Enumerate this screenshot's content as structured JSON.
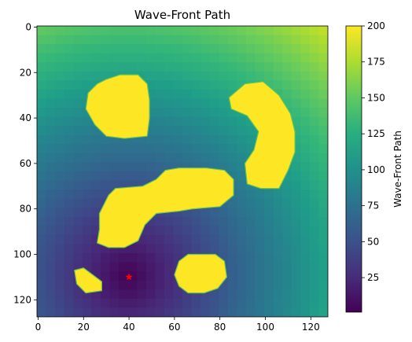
{
  "chart_data": {
    "type": "heatmap",
    "title": "Wave-Front Path",
    "xlim": [
      0,
      127
    ],
    "ylim": [
      127,
      0
    ],
    "y_inverted": true,
    "xticks": [
      0,
      20,
      40,
      60,
      80,
      100,
      120
    ],
    "yticks": [
      0,
      20,
      40,
      60,
      80,
      100,
      120
    ],
    "colormap": "viridis",
    "colorbar": {
      "label": "Wave-Front Path",
      "range": [
        1,
        200
      ],
      "ticks": [
        25,
        50,
        75,
        100,
        125,
        150,
        175,
        200
      ]
    },
    "start_marker": {
      "x": 40,
      "y": 110,
      "symbol": "star",
      "color": "#ff0000"
    },
    "obstacle_value": 200,
    "obstacles": [
      {
        "shape": "blob",
        "points": [
          [
            30,
            23
          ],
          [
            36,
            21
          ],
          [
            44,
            21
          ],
          [
            48,
            25
          ],
          [
            49,
            32
          ],
          [
            49,
            40
          ],
          [
            48,
            48
          ],
          [
            38,
            49
          ],
          [
            30,
            48
          ],
          [
            25,
            43
          ],
          [
            21,
            36
          ],
          [
            22,
            29
          ],
          [
            26,
            25
          ]
        ]
      },
      {
        "shape": "blob",
        "points": [
          [
            84,
            31
          ],
          [
            91,
            25
          ],
          [
            99,
            24
          ],
          [
            106,
            30
          ],
          [
            111,
            38
          ],
          [
            113,
            46
          ],
          [
            113,
            55
          ],
          [
            110,
            63
          ],
          [
            106,
            71
          ],
          [
            98,
            71
          ],
          [
            92,
            69
          ],
          [
            91,
            60
          ],
          [
            95,
            54
          ],
          [
            97,
            46
          ],
          [
            92,
            39
          ],
          [
            85,
            36
          ]
        ]
      },
      {
        "shape": "blob",
        "points": [
          [
            56,
            63
          ],
          [
            62,
            62
          ],
          [
            74,
            62
          ],
          [
            82,
            63
          ],
          [
            86,
            67
          ],
          [
            86,
            74
          ],
          [
            80,
            79
          ],
          [
            68,
            80
          ],
          [
            62,
            81
          ],
          [
            52,
            82
          ],
          [
            47,
            87
          ],
          [
            44,
            94
          ],
          [
            38,
            97
          ],
          [
            31,
            97
          ],
          [
            26,
            95
          ],
          [
            27,
            89
          ],
          [
            27,
            82
          ],
          [
            31,
            74
          ],
          [
            34,
            71
          ],
          [
            46,
            70
          ],
          [
            52,
            67
          ]
        ]
      },
      {
        "shape": "blob",
        "points": [
          [
            62,
            103
          ],
          [
            66,
            100
          ],
          [
            78,
            100
          ],
          [
            82,
            103
          ],
          [
            83,
            110
          ],
          [
            79,
            115
          ],
          [
            73,
            117
          ],
          [
            66,
            117
          ],
          [
            62,
            114
          ],
          [
            60,
            109
          ]
        ]
      },
      {
        "shape": "blob",
        "points": [
          [
            16,
            107
          ],
          [
            20,
            106
          ],
          [
            24,
            109
          ],
          [
            28,
            112
          ],
          [
            28,
            116
          ],
          [
            21,
            117
          ],
          [
            17,
            113
          ]
        ]
      }
    ]
  }
}
